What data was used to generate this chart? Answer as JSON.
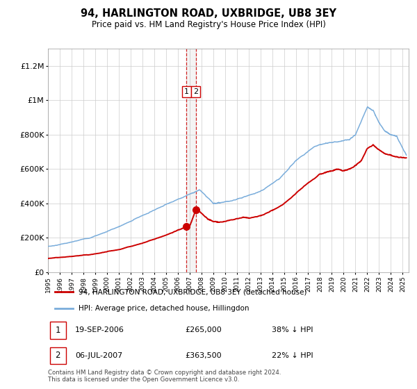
{
  "title": "94, HARLINGTON ROAD, UXBRIDGE, UB8 3EY",
  "subtitle": "Price paid vs. HM Land Registry's House Price Index (HPI)",
  "legend_line1": "94, HARLINGTON ROAD, UXBRIDGE, UB8 3EY (detached house)",
  "legend_line2": "HPI: Average price, detached house, Hillingdon",
  "transaction1_label": "1",
  "transaction1_date": "19-SEP-2006",
  "transaction1_price": "£265,000",
  "transaction1_hpi": "38% ↓ HPI",
  "transaction1_year": 2006.72,
  "transaction1_value": 265000,
  "transaction2_label": "2",
  "transaction2_date": "06-JUL-2007",
  "transaction2_price": "£363,500",
  "transaction2_hpi": "22% ↓ HPI",
  "transaction2_year": 2007.5,
  "transaction2_value": 363500,
  "footer_line1": "Contains HM Land Registry data © Crown copyright and database right 2024.",
  "footer_line2": "This data is licensed under the Open Government Licence v3.0.",
  "hpi_color": "#7aaddb",
  "price_color": "#cc0000",
  "marker_color": "#cc0000",
  "vline_color": "#cc0000",
  "background_color": "#ffffff",
  "grid_color": "#cccccc",
  "ylim": [
    0,
    1300000
  ],
  "yticks": [
    0,
    200000,
    400000,
    600000,
    800000,
    1000000,
    1200000
  ],
  "ylabels": [
    "£0",
    "£200K",
    "£400K",
    "£600K",
    "£800K",
    "£1M",
    "£1.2M"
  ],
  "xlim_start": 1995.0,
  "xlim_end": 2025.5,
  "xtick_years": [
    1995,
    1996,
    1997,
    1998,
    1999,
    2000,
    2001,
    2002,
    2003,
    2004,
    2005,
    2006,
    2007,
    2008,
    2009,
    2010,
    2011,
    2012,
    2013,
    2014,
    2015,
    2016,
    2017,
    2018,
    2019,
    2020,
    2021,
    2022,
    2023,
    2024,
    2025
  ]
}
